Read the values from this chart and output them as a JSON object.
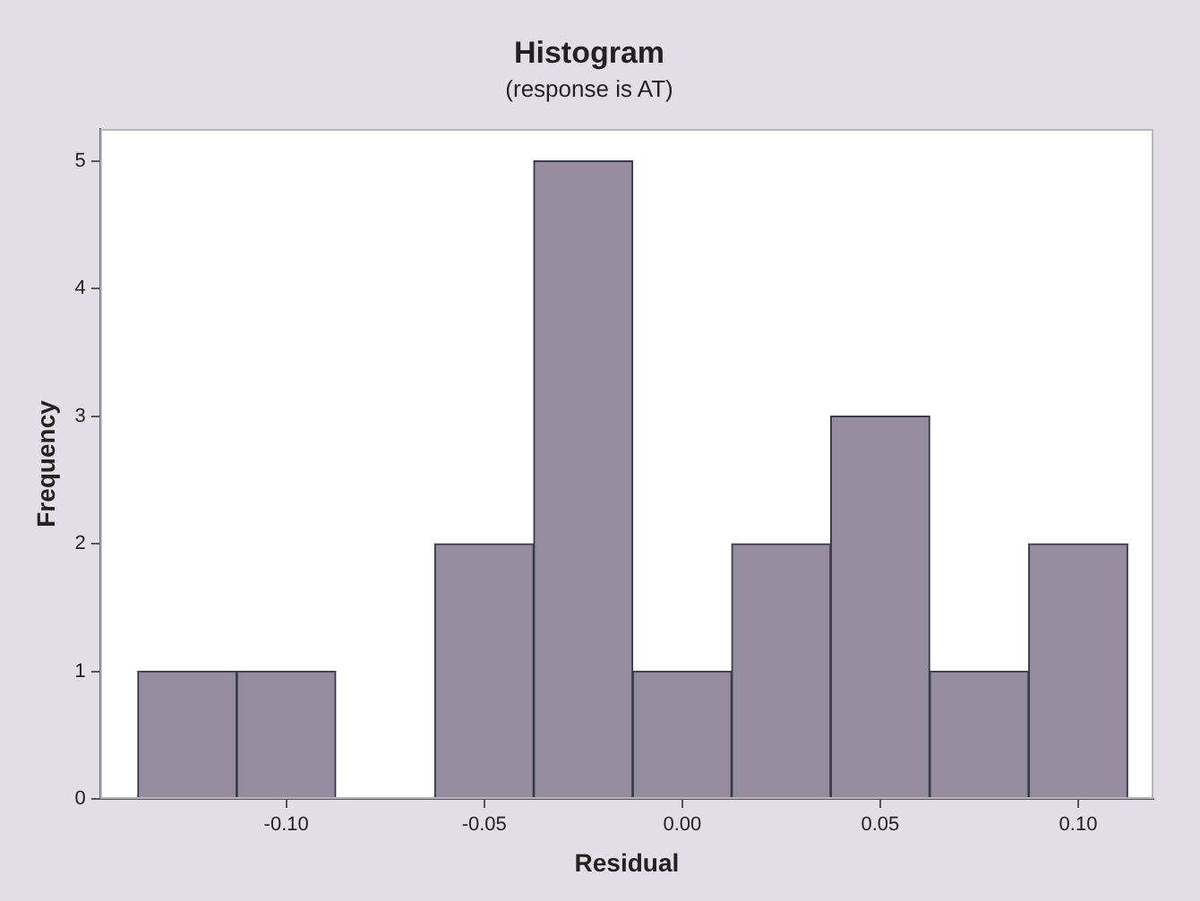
{
  "chart_data": {
    "type": "histogram",
    "title": "Histogram",
    "subtitle": "(response is AT)",
    "xlabel": "Residual",
    "ylabel": "Frequency",
    "bins": [
      -0.1375,
      -0.1125,
      -0.0875,
      -0.0625,
      -0.0375,
      -0.0125,
      0.0125,
      0.0375,
      0.0625,
      0.0875,
      0.1125
    ],
    "values": [
      1,
      1,
      0,
      2,
      5,
      1,
      2,
      3,
      1,
      2
    ],
    "color": "#958ca0",
    "xlim": [
      -0.147,
      0.119
    ],
    "xticks": [
      {
        "value": -0.1,
        "label": "-0.10"
      },
      {
        "value": -0.05,
        "label": "-0.05"
      },
      {
        "value": 0,
        "label": "0.00"
      },
      {
        "value": 0.05,
        "label": "0.05"
      },
      {
        "value": 0.1,
        "label": "0.10"
      }
    ],
    "ylim": [
      0,
      5.25
    ],
    "yticks": [
      0,
      1,
      2,
      3,
      4,
      5
    ],
    "grid": false,
    "legend": false
  }
}
